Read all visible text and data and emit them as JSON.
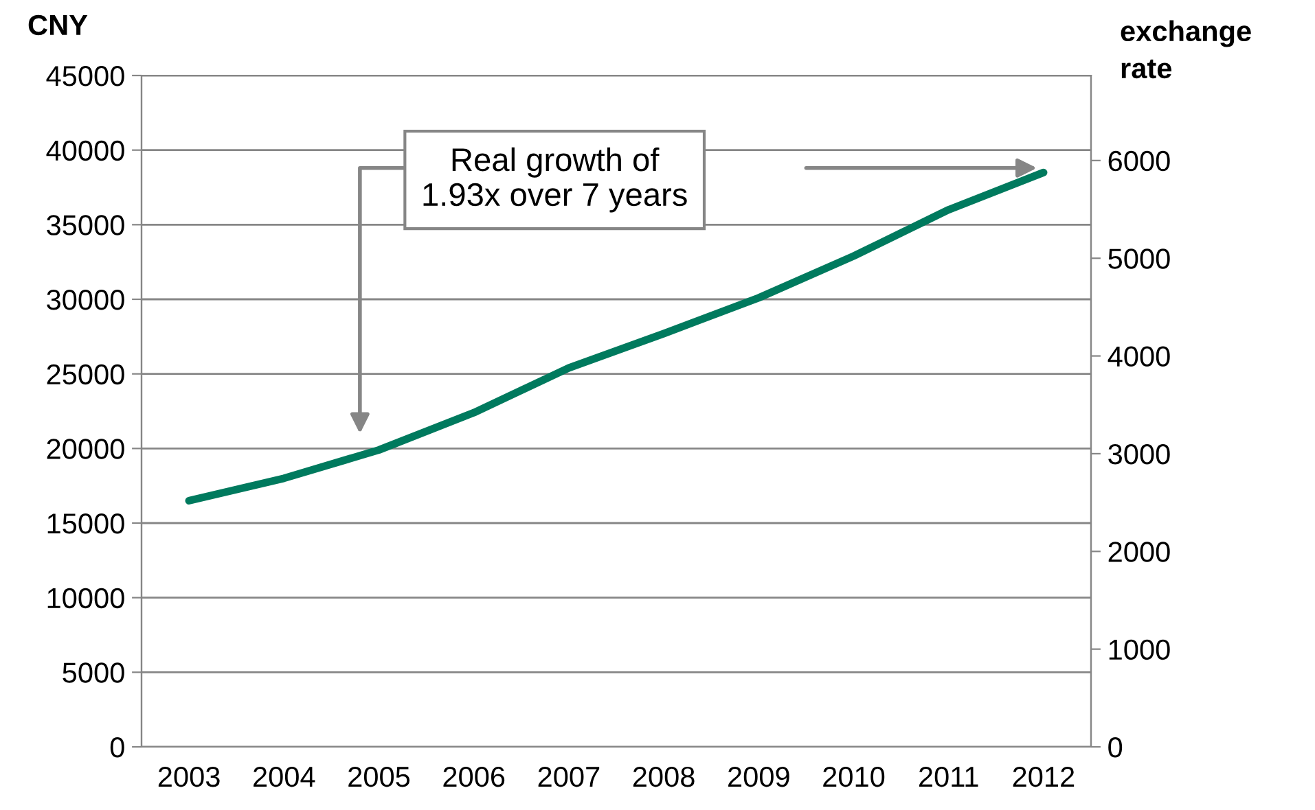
{
  "chart_data": {
    "type": "line",
    "ylabel": "CNY",
    "y2label": "exchange rate",
    "categories": [
      "2003",
      "2004",
      "2005",
      "2006",
      "2007",
      "2008",
      "2009",
      "2010",
      "2011",
      "2012"
    ],
    "series": [
      {
        "color": "#007a5e",
        "values": [
          16500,
          18000,
          19900,
          22400,
          25400,
          27700,
          30100,
          32900,
          36000,
          38500
        ]
      }
    ],
    "ylim": [
      0,
      45000
    ],
    "yticks": [
      0,
      5000,
      10000,
      15000,
      20000,
      25000,
      30000,
      35000,
      40000,
      45000
    ],
    "y2lim": [
      0,
      6870
    ],
    "y2ticks": [
      0,
      1000,
      2000,
      3000,
      4000,
      5000,
      6000
    ],
    "grid": "y",
    "legend": false,
    "marker": "none",
    "line_style": "solid",
    "annotations": [
      "Real growth of\n1.93x over 7 years"
    ]
  }
}
